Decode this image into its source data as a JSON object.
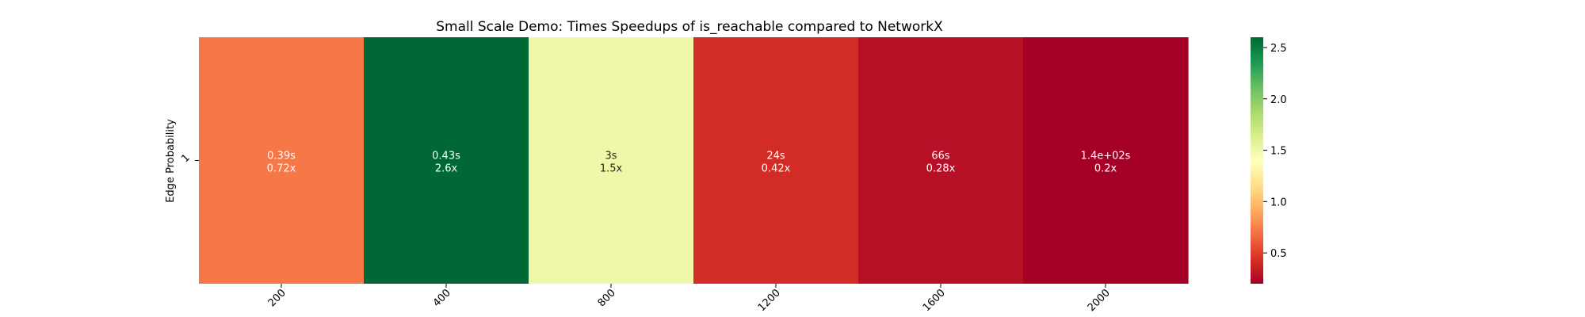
{
  "chart_data": {
    "type": "heatmap",
    "title": "Small Scale Demo: Times Speedups of is_reachable compared to NetworkX",
    "xlabel": "",
    "ylabel": "Edge Probability",
    "x_categories": [
      "200",
      "400",
      "800",
      "1200",
      "1600",
      "2000"
    ],
    "y_categories": [
      "1"
    ],
    "values": [
      [
        0.72,
        2.6,
        1.5,
        0.42,
        0.28,
        0.2
      ]
    ],
    "annotations": [
      [
        [
          "0.39s",
          "0.72x"
        ],
        [
          "0.43s",
          "2.6x"
        ],
        [
          "3s",
          "1.5x"
        ],
        [
          "24s",
          "0.42x"
        ],
        [
          "66s",
          "0.28x"
        ],
        [
          "1.4e+02s",
          "0.2x"
        ]
      ]
    ],
    "colormap": "RdYlGn",
    "colorbar": {
      "range": [
        0.2,
        2.6
      ],
      "ticks": [
        0.5,
        1.0,
        1.5,
        2.0,
        2.5
      ],
      "tick_labels": [
        "0.5",
        "1.0",
        "1.5",
        "2.0",
        "2.5"
      ]
    },
    "grid": false
  }
}
